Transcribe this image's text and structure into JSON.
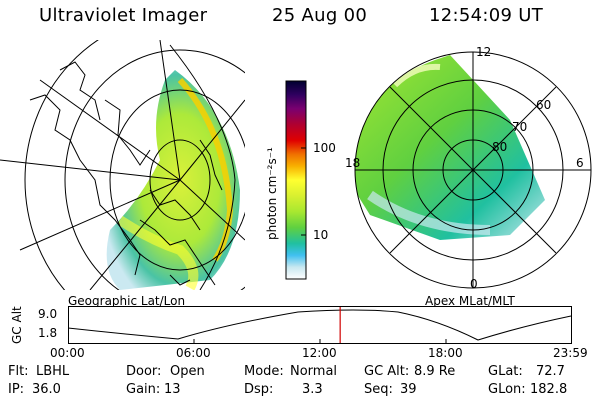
{
  "header": {
    "instrument": "Ultraviolet Imager",
    "date": "25 Aug 00",
    "time": "12:54:09 UT"
  },
  "colorbar": {
    "unit_label": "photon cm⁻²s⁻¹",
    "ticks": [
      "100",
      "10"
    ],
    "colors": [
      "#000030",
      "#300060",
      "#7a0070",
      "#b00030",
      "#e00000",
      "#f07000",
      "#f8b000",
      "#ffff30",
      "#d8f030",
      "#a8e830",
      "#60d040",
      "#20c0a0",
      "#40c0f0",
      "#c8e8f0",
      "#ffffff"
    ]
  },
  "left_map": {
    "caption": "Geographic Lat/Lon"
  },
  "right_map": {
    "caption": "Apex MLat/MLT",
    "mlt_labels": [
      "12",
      "18",
      "6",
      "0"
    ],
    "lat_labels": [
      "60",
      "70",
      "80"
    ]
  },
  "orbit_plot": {
    "ylabel": "GC Alt",
    "yticks": [
      "9.0",
      "1.8"
    ],
    "xticks": [
      "00:00",
      "06:00",
      "12:00",
      "18:00",
      "23:59"
    ],
    "current_time_fraction": 0.54,
    "marker_color": "#d00000"
  },
  "info": {
    "flt_label": "Flt:",
    "flt_value": "LBHL",
    "ip_label": "IP:",
    "ip_value": "36.0",
    "door_label": "Door:",
    "door_value": "Open",
    "gain_label": "Gain:",
    "gain_value": "13",
    "mode_label": "Mode:",
    "mode_value": "Normal",
    "dsp_label": "Dsp:",
    "dsp_value": "3.3",
    "gcalt_label": "GC Alt:",
    "gcalt_value": "8.9 Re",
    "seq_label": "Seq:",
    "seq_value": "39",
    "glat_label": "GLat:",
    "glat_value": "72.7",
    "glon_label": "GLon:",
    "glon_value": "182.8"
  }
}
